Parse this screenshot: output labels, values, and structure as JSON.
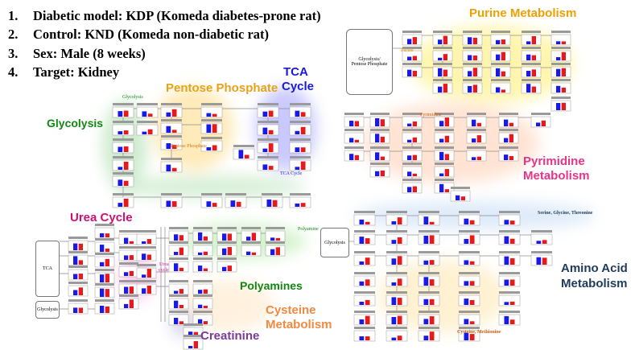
{
  "study_info": {
    "items": [
      {
        "num": "1.",
        "text": "Diabetic model: KDP (Komeda diabetes-prone rat)"
      },
      {
        "num": "2.",
        "text": "Control:  KND (Komeda non-diabetic rat)"
      },
      {
        "num": "3.",
        "text": "Sex:  Male (8 weeks)"
      },
      {
        "num": "4.",
        "text": "Target: Kidney"
      }
    ]
  },
  "pathway_titles": {
    "glycolysis": "Glycolysis",
    "pentose_phosphate": "Pentose Phosphate",
    "tca_line1": "TCA",
    "tca_line2": "Cycle",
    "urea_cycle": "Urea Cycle",
    "polyamines": "Polyamines",
    "cysteine_line1": "Cysteine",
    "cysteine_line2": "Metabolism",
    "creatinine": "Creatinine",
    "purine": "Purine Metabolism",
    "pyrimidine_line1": "Pyrimidine",
    "pyrimidine_line2": "Metabolism",
    "amino_acid_line1": "Amino Acid",
    "amino_acid_line2": "Metabolism"
  },
  "small_labels": {
    "glycolysis": "Glycolysis",
    "pentose_phosphate": "Pentose Phosphate",
    "tca_cycle": "TCA Cycle",
    "urea_cycle_line1": "Urea",
    "urea_cycle_line2": "cycle",
    "polyamine": "Polyamine",
    "purine": "Purine",
    "pyrimidine": "Pyrimidine",
    "serine_glycine_threonine": "Serine, Glycine, Threonine",
    "cysteine_methionine": "Cysteine, Methionine"
  },
  "boxes": {
    "glycolysis_pentose_line1": "Glycolysis/",
    "glycolysis_pentose_line2": "Pentose Phosphate",
    "tca": "TCA",
    "glycolysis_left": "Glycolysis",
    "glycolysis_aa": "Glycolysis"
  },
  "colors": {
    "bar_kdp": "#1a1ae6",
    "bar_knd": "#e61a1a",
    "glycolysis_bg": "#a7dca7",
    "pentose_bg": "#ffd980",
    "tca_bg": "#9e9eff",
    "urea_bg": "#ff9fe0",
    "polyamine_bg": "#b5e8a8",
    "cysteine_bg": "#ffd8a0",
    "creatinine_bg": "#c9c9e8",
    "purine_bg": "#fff07a",
    "pyrimidine_bg": "#ffc2a0",
    "amino_acid_bg": "#b7d2f2",
    "title_glycolysis": "#118811",
    "title_pentose": "#e8a21a",
    "title_tca": "#1a1ad8",
    "title_urea": "#cc1173",
    "title_polyamines": "#118811",
    "title_cysteine": "#f08a40",
    "title_creatinine": "#7a3c9a",
    "title_purine": "#f0a000",
    "title_pyrimidine": "#e8338a",
    "title_amino_acid": "#1f3a5c"
  }
}
